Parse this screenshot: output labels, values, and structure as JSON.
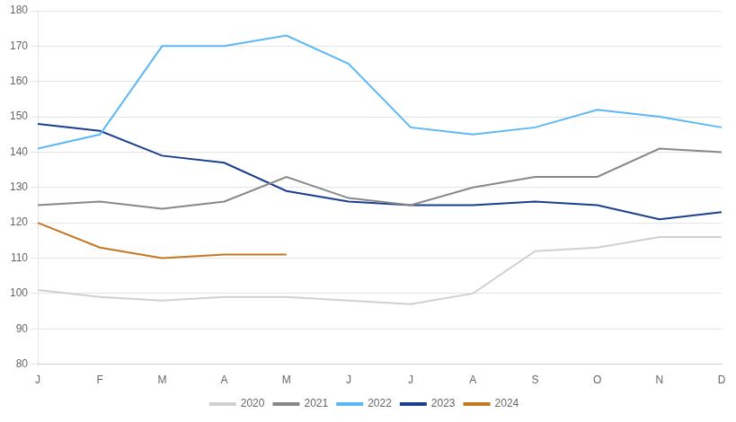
{
  "chart_data": {
    "type": "line",
    "categories": [
      "J",
      "F",
      "M",
      "A",
      "M",
      "J",
      "J",
      "A",
      "S",
      "O",
      "N",
      "D"
    ],
    "series": [
      {
        "name": "2020",
        "color": "#d0d0d0",
        "values": [
          101,
          99,
          98,
          99,
          99,
          98,
          97,
          100,
          112,
          113,
          116,
          116
        ]
      },
      {
        "name": "2021",
        "color": "#888888",
        "values": [
          125,
          126,
          124,
          126,
          133,
          127,
          125,
          130,
          133,
          133,
          141,
          140
        ]
      },
      {
        "name": "2022",
        "color": "#5bb8f5",
        "values": [
          141,
          145,
          170,
          170,
          173,
          165,
          147,
          145,
          147,
          152,
          150,
          147
        ]
      },
      {
        "name": "2023",
        "color": "#1a3f8f",
        "values": [
          148,
          146,
          139,
          137,
          129,
          126,
          125,
          125,
          126,
          125,
          121,
          123
        ]
      },
      {
        "name": "2024",
        "color": "#c47820",
        "values": [
          120,
          113,
          110,
          111,
          111,
          null,
          null,
          null,
          null,
          null,
          null,
          null
        ]
      }
    ],
    "ylim": [
      80,
      180
    ],
    "yticks": [
      80,
      90,
      100,
      110,
      120,
      130,
      140,
      150,
      160,
      170,
      180
    ],
    "grid": "y",
    "legend": "bottom"
  }
}
